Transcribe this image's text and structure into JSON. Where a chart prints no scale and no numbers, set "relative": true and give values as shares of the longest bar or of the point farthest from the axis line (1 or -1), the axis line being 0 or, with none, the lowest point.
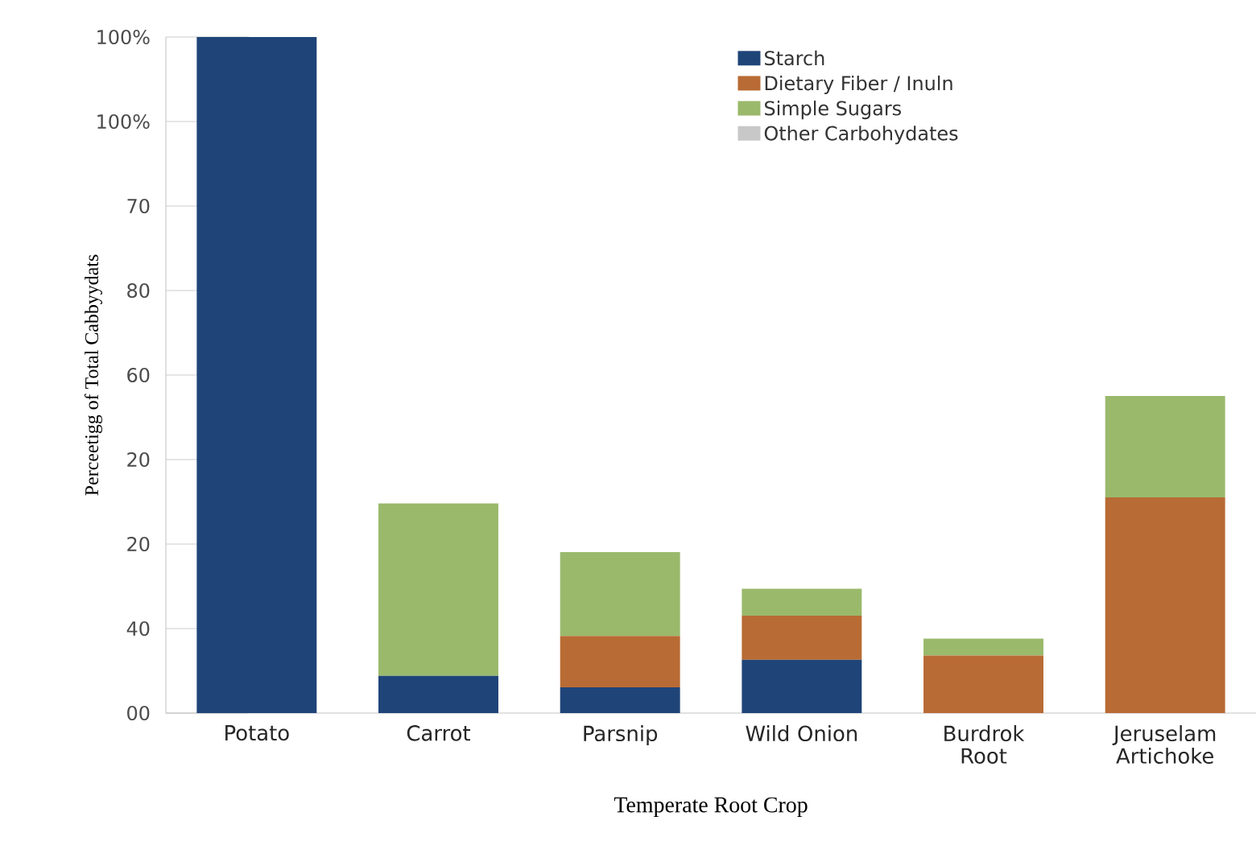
{
  "chart_data": {
    "type": "bar",
    "stacked": true,
    "relative": true,
    "xlabel": "Temperate Root Crop",
    "ylabel": "Perceetigg of Total Cabbyydats",
    "categories": [
      "Potato",
      "Carrot",
      "Parsnip",
      "Wild Onion",
      "Burdrok Root",
      "Jeruselam Artichoke"
    ],
    "series": [
      {
        "name": "Starch",
        "color": "#1f4478",
        "values": [
          1,
          0.055,
          0.038,
          0.079,
          0,
          0
        ]
      },
      {
        "name": "Dietary Fiber / Inuln",
        "color": "#b86b34",
        "values": [
          0,
          0,
          0.076,
          0.065,
          0.085,
          0.319
        ]
      },
      {
        "name": "Simple Sugars",
        "color": "#9ab96b",
        "values": [
          0,
          0.255,
          0.124,
          0.04,
          0.025,
          0.15
        ]
      },
      {
        "name": "Other Carbohydates",
        "color": "#c8c8c8",
        "values": [
          0,
          0,
          0,
          0,
          0,
          0
        ]
      }
    ],
    "annotations": [
      "100%",
      "100%",
      "70",
      "80",
      "60",
      "20",
      "20",
      "40",
      "00"
    ],
    "legend": "top right",
    "grid": false
  }
}
